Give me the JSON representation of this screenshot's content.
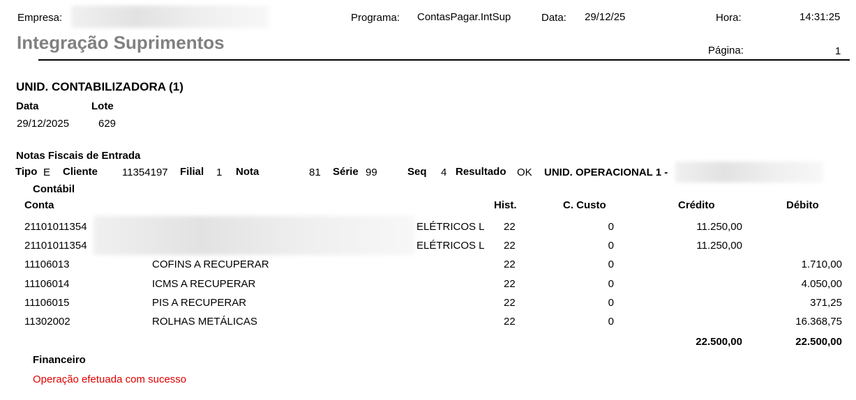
{
  "header": {
    "empresa_label": "Empresa:",
    "programa_label": "Programa:",
    "programa": "ContasPagar.IntSup",
    "data_label": "Data:",
    "data": "29/12/25",
    "hora_label": "Hora:",
    "hora": "14:31:25",
    "pagina_label": "Página:",
    "pagina": "1",
    "title": "Integração Suprimentos"
  },
  "unid": {
    "title": "UNID. CONTABILIZADORA (1)",
    "data_label": "Data",
    "lote_label": "Lote",
    "data": "29/12/2025",
    "lote": "629"
  },
  "notas": {
    "title": "Notas Fiscais de Entrada",
    "tipo_label": "Tipo",
    "tipo": "E",
    "cliente_label": "Cliente",
    "cliente": "11354197",
    "filial_label": "Filial",
    "filial": "1",
    "nota_label": "Nota",
    "nota": "81",
    "serie_label": "Série",
    "serie": "99",
    "seq_label": "Seq",
    "seq": "4",
    "resultado_label": "Resultado",
    "resultado": "OK",
    "operacional_label": "UNID. OPERACIONAL 1 -"
  },
  "contabil": {
    "title": "Contábil",
    "columns": {
      "conta": "Conta",
      "hist": "Hist.",
      "ccusto": "C. Custo",
      "credito": "Crédito",
      "debito": "Débito"
    },
    "rows": [
      {
        "conta": "21101011354",
        "desc": "ELÉTRICOS L",
        "hist": "22",
        "ccusto": "0",
        "credito": "11.250,00",
        "debito": ""
      },
      {
        "conta": "21101011354",
        "desc": "ELÉTRICOS L",
        "hist": "22",
        "ccusto": "0",
        "credito": "11.250,00",
        "debito": ""
      },
      {
        "conta": "11106013",
        "desc": "COFINS A RECUPERAR",
        "hist": "22",
        "ccusto": "0",
        "credito": "",
        "debito": "1.710,00"
      },
      {
        "conta": "11106014",
        "desc": "ICMS A RECUPERAR",
        "hist": "22",
        "ccusto": "0",
        "credito": "",
        "debito": "4.050,00"
      },
      {
        "conta": "11106015",
        "desc": "PIS A RECUPERAR",
        "hist": "22",
        "ccusto": "0",
        "credito": "",
        "debito": "371,25"
      },
      {
        "conta": "11302002",
        "desc": "ROLHAS METÁLICAS",
        "hist": "22",
        "ccusto": "0",
        "credito": "",
        "debito": "16.368,75"
      }
    ],
    "total_credito": "22.500,00",
    "total_debito": "22.500,00"
  },
  "financeiro": {
    "title": "Financeiro",
    "message": "Operação efetuada com sucesso",
    "message_color": "#e00000"
  }
}
